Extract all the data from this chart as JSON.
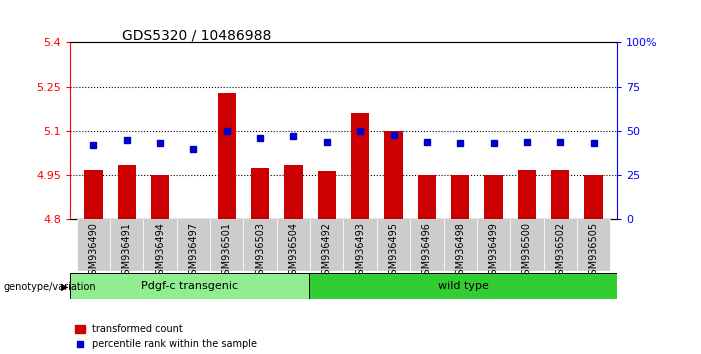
{
  "title": "GDS5320 / 10486988",
  "categories": [
    "GSM936490",
    "GSM936491",
    "GSM936494",
    "GSM936497",
    "GSM936501",
    "GSM936503",
    "GSM936504",
    "GSM936492",
    "GSM936493",
    "GSM936495",
    "GSM936496",
    "GSM936498",
    "GSM936499",
    "GSM936500",
    "GSM936502",
    "GSM936505"
  ],
  "bar_values": [
    4.968,
    4.984,
    4.952,
    4.802,
    5.23,
    4.975,
    4.985,
    4.965,
    5.16,
    5.1,
    4.952,
    4.952,
    4.95,
    4.968,
    4.968,
    4.95
  ],
  "percentile_values": [
    42,
    45,
    43,
    40,
    50,
    46,
    47,
    44,
    50,
    48,
    44,
    43,
    43,
    44,
    44,
    43
  ],
  "bar_color": "#cc0000",
  "dot_color": "#0000cc",
  "ylim_left": [
    4.8,
    5.4
  ],
  "ylim_right": [
    0,
    100
  ],
  "yticks_left": [
    4.8,
    4.95,
    5.1,
    5.25,
    5.4
  ],
  "yticks_right": [
    0,
    25,
    50,
    75,
    100
  ],
  "ytick_labels_left": [
    "4.8",
    "4.95",
    "5.1",
    "5.25",
    "5.4"
  ],
  "ytick_labels_right": [
    "0",
    "25",
    "50",
    "75",
    "100%"
  ],
  "gridlines_at": [
    4.95,
    5.1,
    5.25
  ],
  "group1_label": "Pdgf-c transgenic",
  "group2_label": "wild type",
  "group1_count": 7,
  "group_label_prefix": "genotype/variation",
  "legend_bar_label": "transformed count",
  "legend_dot_label": "percentile rank within the sample",
  "background_color": "#ffffff",
  "bar_baseline": 4.8,
  "bar_width": 0.55,
  "xtick_bg": "#cccccc",
  "group1_color": "#90ee90",
  "group2_color": "#32cd32"
}
